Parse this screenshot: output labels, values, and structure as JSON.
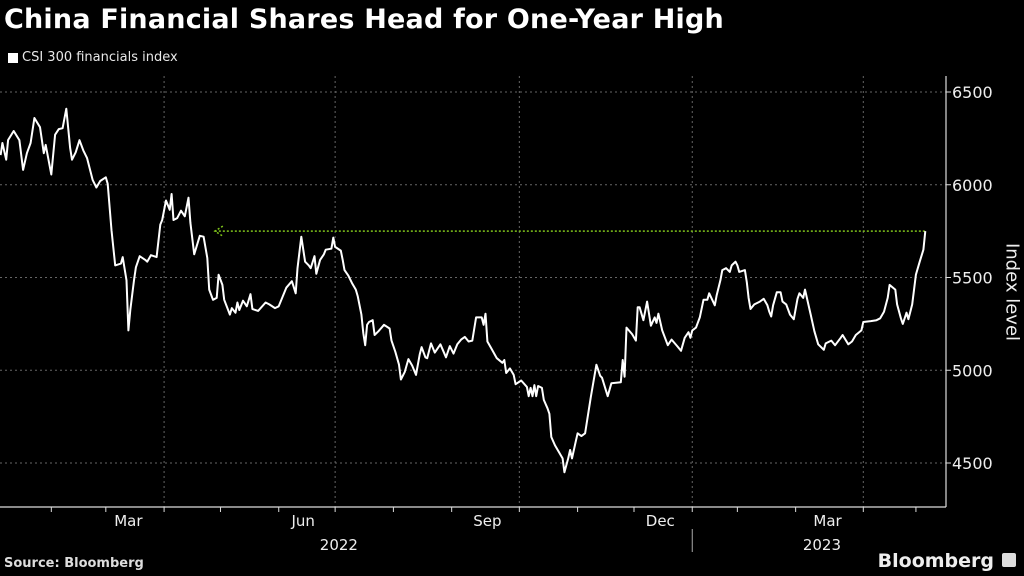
{
  "chart_data": {
    "type": "line",
    "title": "China Financial Shares Head for One-Year High",
    "legend": [
      "CSI 300 financials index"
    ],
    "legend_placement": "top-left",
    "ylabel": "Index level",
    "xlabel": "",
    "x_unit": "approx. days since 2022-01-01",
    "xlim": [
      2.7,
      506
    ],
    "ylim": [
      4270,
      6720
    ],
    "yticks": [
      4500,
      5000,
      5500,
      6000,
      6500
    ],
    "ytick_labels": [
      "4500",
      "5000",
      "5500",
      "6000",
      "6500"
    ],
    "xtick_labels": [
      {
        "label": "Mar",
        "x": 71
      },
      {
        "label": "Jun",
        "x": 164
      },
      {
        "label": "Sep",
        "x": 262
      },
      {
        "label": "Dec",
        "x": 354
      },
      {
        "label": "Mar",
        "x": 443
      }
    ],
    "year_labels": [
      {
        "label": "2022",
        "x": 183
      },
      {
        "label": "2023",
        "x": 440
      }
    ],
    "year_divider_x": 371,
    "x_gridlines": [
      90,
      181,
      279,
      371,
      462
    ],
    "grid": true,
    "reference_line": {
      "value": 5750,
      "x_start": 117,
      "x_end": 495,
      "color": "#7fc31c",
      "arrow": "left"
    },
    "series": [
      {
        "name": "CSI 300 financials index",
        "color": "#ffffff",
        "x": [
          3,
          4,
          6,
          7,
          10,
          13,
          15,
          17,
          19,
          21,
          24,
          26,
          27,
          30,
          32,
          34,
          36,
          38,
          40,
          41,
          43,
          45,
          47,
          49,
          52,
          54,
          56,
          59,
          60,
          62,
          64,
          67,
          68,
          70,
          71,
          72,
          74,
          75,
          77,
          80,
          81,
          83,
          86,
          88,
          89,
          91,
          93,
          94,
          95,
          97,
          99,
          101,
          103,
          104,
          106,
          109,
          111,
          113,
          114,
          116,
          118,
          119,
          121,
          122,
          125,
          126,
          128,
          129,
          130,
          132,
          134,
          136,
          137,
          140,
          144,
          146,
          149,
          151,
          153,
          155,
          158,
          160,
          161,
          163,
          165,
          167,
          168,
          170,
          171,
          173,
          175,
          176,
          179,
          180,
          181,
          184,
          185,
          186,
          188,
          190,
          192,
          193,
          195,
          196,
          197,
          198,
          199,
          201,
          202,
          204,
          207,
          210,
          211,
          213,
          215,
          216,
          218,
          220,
          222,
          224,
          226,
          227,
          229,
          230,
          232,
          234,
          237,
          240,
          242,
          244,
          246,
          248,
          250,
          252,
          254,
          256,
          259,
          260,
          261,
          262,
          264,
          267,
          270,
          271,
          272,
          274,
          276,
          277,
          280,
          283,
          284,
          285,
          286,
          287,
          288,
          289,
          291,
          292,
          294,
          295,
          296,
          298,
          300,
          302,
          303,
          305,
          306,
          307,
          309,
          310,
          312,
          314,
          317,
          320,
          322,
          323,
          326,
          328,
          333,
          334,
          335,
          336,
          339,
          341,
          342,
          343,
          345,
          347,
          349,
          351,
          352,
          353,
          355,
          358,
          360,
          363,
          365,
          367,
          369,
          370,
          371,
          373,
          375,
          377,
          379,
          380,
          383,
          384,
          386,
          387,
          389,
          391,
          392,
          394,
          395,
          396,
          399,
          400,
          401,
          402,
          404,
          407,
          409,
          411,
          412,
          413,
          414,
          416,
          418,
          419,
          421,
          423,
          425,
          427,
          428,
          430,
          431,
          434,
          436,
          438,
          441,
          442,
          445,
          447,
          450,
          451,
          454,
          456,
          458,
          461,
          462,
          466,
          469,
          471,
          473,
          475,
          476,
          479,
          480,
          482,
          483,
          485,
          486,
          488,
          490,
          492,
          494,
          495
        ],
        "values": [
          6160,
          6225,
          6135,
          6241,
          6290,
          6240,
          6080,
          6170,
          6225,
          6360,
          6310,
          6170,
          6215,
          6055,
          6270,
          6300,
          6305,
          6410,
          6200,
          6135,
          6175,
          6240,
          6185,
          6145,
          6025,
          5985,
          6020,
          6040,
          6005,
          5755,
          5565,
          5575,
          5610,
          5485,
          5215,
          5325,
          5485,
          5555,
          5615,
          5595,
          5585,
          5620,
          5610,
          5785,
          5810,
          5915,
          5865,
          5950,
          5810,
          5820,
          5860,
          5830,
          5930,
          5795,
          5625,
          5725,
          5720,
          5605,
          5435,
          5380,
          5390,
          5515,
          5460,
          5380,
          5300,
          5335,
          5310,
          5365,
          5325,
          5375,
          5345,
          5410,
          5330,
          5320,
          5365,
          5355,
          5335,
          5345,
          5395,
          5445,
          5480,
          5415,
          5550,
          5720,
          5585,
          5565,
          5550,
          5615,
          5520,
          5595,
          5625,
          5650,
          5655,
          5715,
          5665,
          5645,
          5595,
          5540,
          5510,
          5470,
          5435,
          5400,
          5300,
          5200,
          5135,
          5245,
          5260,
          5270,
          5190,
          5210,
          5245,
          5225,
          5160,
          5100,
          5030,
          4950,
          4990,
          5060,
          5025,
          4975,
          5085,
          5125,
          5070,
          5065,
          5145,
          5095,
          5140,
          5070,
          5130,
          5090,
          5140,
          5165,
          5180,
          5155,
          5160,
          5285,
          5285,
          5245,
          5305,
          5155,
          5120,
          5065,
          5040,
          5055,
          4985,
          5010,
          4975,
          4925,
          4945,
          4910,
          4860,
          4905,
          4860,
          4920,
          4860,
          4915,
          4905,
          4840,
          4795,
          4765,
          4640,
          4595,
          4560,
          4525,
          4450,
          4525,
          4570,
          4525,
          4615,
          4660,
          4645,
          4660,
          4855,
          5030,
          4970,
          4960,
          4860,
          4930,
          4935,
          5055,
          4965,
          5230,
          5195,
          5160,
          5340,
          5340,
          5270,
          5370,
          5240,
          5285,
          5255,
          5305,
          5215,
          5135,
          5165,
          5130,
          5105,
          5175,
          5205,
          5175,
          5215,
          5230,
          5285,
          5380,
          5380,
          5415,
          5350,
          5405,
          5485,
          5540,
          5550,
          5530,
          5565,
          5585,
          5565,
          5530,
          5540,
          5475,
          5390,
          5330,
          5355,
          5370,
          5385,
          5350,
          5315,
          5290,
          5350,
          5420,
          5420,
          5370,
          5355,
          5300,
          5275,
          5385,
          5415,
          5390,
          5435,
          5300,
          5210,
          5140,
          5110,
          5145,
          5160,
          5135,
          5175,
          5190,
          5140,
          5155,
          5190,
          5215,
          5260,
          5265,
          5270,
          5280,
          5315,
          5390,
          5460,
          5435,
          5355,
          5280,
          5250,
          5310,
          5275,
          5355,
          5515,
          5585,
          5650,
          5750
        ]
      }
    ]
  },
  "footer": {
    "source": "Source: Bloomberg",
    "brand": "Bloomberg"
  },
  "colors": {
    "background": "#000000",
    "line": "#ffffff",
    "reference": "#7fc31c",
    "grid": "#666666"
  }
}
